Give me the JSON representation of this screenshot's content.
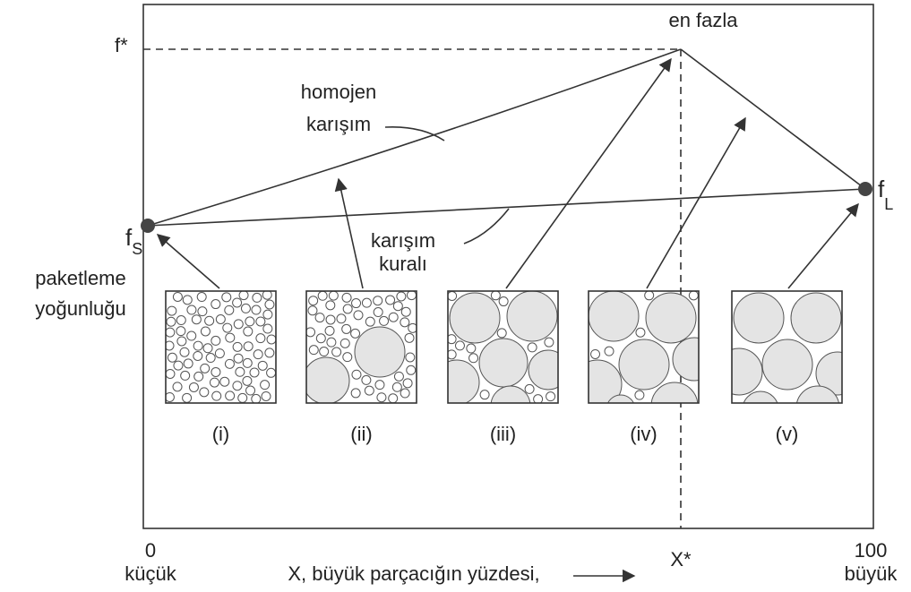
{
  "labels": {
    "peak": "en fazla",
    "f_star": "f*",
    "homogeneous": [
      "homojen",
      "karışım"
    ],
    "f_s": {
      "symbol": "f",
      "subscript": "S"
    },
    "f_l": {
      "symbol": "f",
      "subscript": "L"
    },
    "mixture_rule": [
      "karışım",
      "kuralı"
    ],
    "packing_density": [
      "paketleme",
      "yoğunluğu"
    ],
    "x_star": "X*"
  },
  "panels": [
    "(i)",
    "(ii)",
    "(iii)",
    "(iv)",
    "(v)"
  ],
  "x_axis": {
    "start": "0",
    "start_label": "küçük",
    "title": "X, büyük parçacığın yüzdesi,",
    "end": "100",
    "end_label": "büyük"
  }
}
